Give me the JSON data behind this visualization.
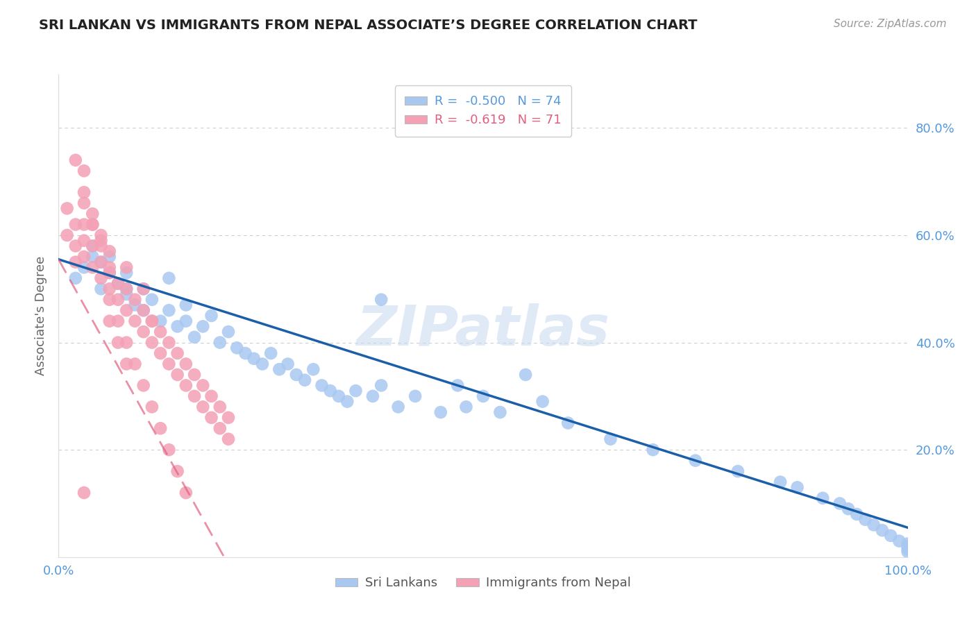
{
  "title": "SRI LANKAN VS IMMIGRANTS FROM NEPAL ASSOCIATE’S DEGREE CORRELATION CHART",
  "source": "Source: ZipAtlas.com",
  "ylabel": "Associate's Degree",
  "yticks": [
    "80.0%",
    "60.0%",
    "40.0%",
    "20.0%"
  ],
  "ytick_vals": [
    0.8,
    0.6,
    0.4,
    0.2
  ],
  "xlim": [
    0.0,
    1.0
  ],
  "ylim": [
    0.0,
    0.9
  ],
  "legend_r_blue": "R =  -0.500",
  "legend_n_blue": "N = 74",
  "legend_r_pink": "R =  -0.619",
  "legend_n_pink": "N = 71",
  "blue_color": "#a8c8f0",
  "pink_color": "#f4a0b5",
  "line_blue_color": "#1a5fa8",
  "line_pink_color": "#e06080",
  "watermark": "ZIPatlas",
  "title_color": "#222222",
  "axis_label_color": "#5599dd",
  "blue_line_x": [
    0.0,
    1.0
  ],
  "blue_line_y": [
    0.555,
    0.055
  ],
  "pink_line_x": [
    0.0,
    0.195
  ],
  "pink_line_y": [
    0.555,
    0.0
  ],
  "sri_lankans_x": [
    0.02,
    0.03,
    0.04,
    0.04,
    0.05,
    0.05,
    0.06,
    0.07,
    0.08,
    0.08,
    0.09,
    0.1,
    0.1,
    0.11,
    0.12,
    0.13,
    0.14,
    0.15,
    0.15,
    0.16,
    0.17,
    0.18,
    0.19,
    0.2,
    0.21,
    0.22,
    0.23,
    0.24,
    0.25,
    0.26,
    0.27,
    0.28,
    0.29,
    0.3,
    0.31,
    0.32,
    0.33,
    0.34,
    0.35,
    0.37,
    0.38,
    0.4,
    0.42,
    0.45,
    0.47,
    0.48,
    0.5,
    0.52,
    0.55,
    0.57,
    0.6,
    0.65,
    0.7,
    0.75,
    0.8,
    0.85,
    0.87,
    0.9,
    0.92,
    0.93,
    0.94,
    0.95,
    0.96,
    0.97,
    0.98,
    0.99,
    1.0,
    1.0,
    1.0,
    1.0,
    0.06,
    0.08,
    0.13,
    0.38
  ],
  "sri_lankans_y": [
    0.52,
    0.54,
    0.56,
    0.58,
    0.5,
    0.55,
    0.53,
    0.51,
    0.49,
    0.53,
    0.47,
    0.5,
    0.46,
    0.48,
    0.44,
    0.46,
    0.43,
    0.44,
    0.47,
    0.41,
    0.43,
    0.45,
    0.4,
    0.42,
    0.39,
    0.38,
    0.37,
    0.36,
    0.38,
    0.35,
    0.36,
    0.34,
    0.33,
    0.35,
    0.32,
    0.31,
    0.3,
    0.29,
    0.31,
    0.3,
    0.32,
    0.28,
    0.3,
    0.27,
    0.32,
    0.28,
    0.3,
    0.27,
    0.34,
    0.29,
    0.25,
    0.22,
    0.2,
    0.18,
    0.16,
    0.14,
    0.13,
    0.11,
    0.1,
    0.09,
    0.08,
    0.07,
    0.06,
    0.05,
    0.04,
    0.03,
    0.025,
    0.02,
    0.015,
    0.01,
    0.56,
    0.5,
    0.52,
    0.48
  ],
  "nepal_x": [
    0.01,
    0.01,
    0.02,
    0.02,
    0.02,
    0.03,
    0.03,
    0.03,
    0.03,
    0.04,
    0.04,
    0.04,
    0.05,
    0.05,
    0.05,
    0.06,
    0.06,
    0.06,
    0.07,
    0.07,
    0.08,
    0.08,
    0.08,
    0.09,
    0.09,
    0.1,
    0.1,
    0.1,
    0.11,
    0.11,
    0.12,
    0.12,
    0.13,
    0.13,
    0.14,
    0.14,
    0.15,
    0.15,
    0.16,
    0.16,
    0.17,
    0.17,
    0.18,
    0.18,
    0.19,
    0.19,
    0.2,
    0.2,
    0.02,
    0.03,
    0.04,
    0.05,
    0.06,
    0.06,
    0.07,
    0.08,
    0.09,
    0.1,
    0.11,
    0.12,
    0.13,
    0.14,
    0.15,
    0.03,
    0.04,
    0.05,
    0.06,
    0.07,
    0.08,
    0.11,
    0.03
  ],
  "nepal_y": [
    0.6,
    0.65,
    0.58,
    0.62,
    0.55,
    0.56,
    0.59,
    0.62,
    0.66,
    0.54,
    0.58,
    0.62,
    0.52,
    0.55,
    0.59,
    0.5,
    0.53,
    0.57,
    0.48,
    0.51,
    0.46,
    0.5,
    0.54,
    0.44,
    0.48,
    0.42,
    0.46,
    0.5,
    0.4,
    0.44,
    0.38,
    0.42,
    0.36,
    0.4,
    0.34,
    0.38,
    0.32,
    0.36,
    0.3,
    0.34,
    0.28,
    0.32,
    0.26,
    0.3,
    0.24,
    0.28,
    0.22,
    0.26,
    0.74,
    0.68,
    0.62,
    0.58,
    0.54,
    0.48,
    0.44,
    0.4,
    0.36,
    0.32,
    0.28,
    0.24,
    0.2,
    0.16,
    0.12,
    0.72,
    0.64,
    0.6,
    0.44,
    0.4,
    0.36,
    0.44,
    0.12
  ]
}
